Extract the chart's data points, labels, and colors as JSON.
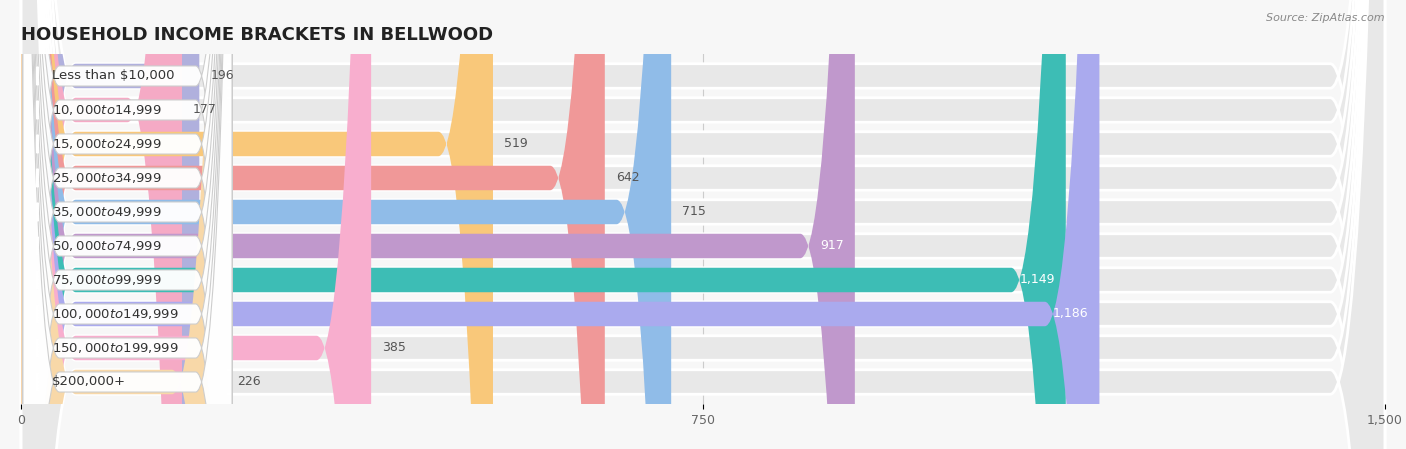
{
  "title": "HOUSEHOLD INCOME BRACKETS IN BELLWOOD",
  "source": "Source: ZipAtlas.com",
  "categories": [
    "Less than $10,000",
    "$10,000 to $14,999",
    "$15,000 to $24,999",
    "$25,000 to $34,999",
    "$35,000 to $49,999",
    "$50,000 to $74,999",
    "$75,000 to $99,999",
    "$100,000 to $149,999",
    "$150,000 to $199,999",
    "$200,000+"
  ],
  "values": [
    196,
    177,
    519,
    642,
    715,
    917,
    1149,
    1186,
    385,
    226
  ],
  "bar_colors": [
    "#b0b0dd",
    "#f5aac5",
    "#f9c87a",
    "#f09898",
    "#90bce8",
    "#c098cc",
    "#3dbdb5",
    "#aaaaee",
    "#f8aece",
    "#f8d8a8"
  ],
  "bar_bg_color": "#e8e8e8",
  "xlim": [
    0,
    1500
  ],
  "xticks": [
    0,
    750,
    1500
  ],
  "background_color": "#f7f7f7",
  "title_fontsize": 13,
  "label_fontsize": 9.5,
  "value_fontsize": 9,
  "value_threshold_white": 900
}
